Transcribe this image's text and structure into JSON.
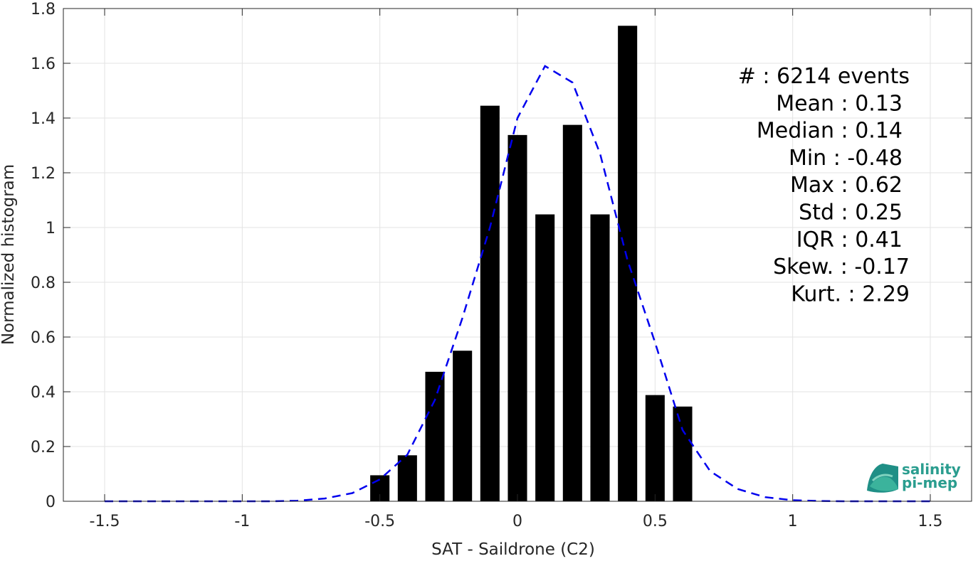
{
  "chart_data": {
    "type": "bar",
    "xlabel": "SAT - Saildrone (C2)",
    "ylabel": "Normalized histogram",
    "xlim": [
      -1.65,
      1.65
    ],
    "ylim": [
      0,
      1.8
    ],
    "xticks": [
      -1.5,
      -1,
      -0.5,
      0,
      0.5,
      1,
      1.5
    ],
    "xtick_labels": [
      "-1.5",
      "-1",
      "-0.5",
      "0",
      "0.5",
      "1",
      "1.5"
    ],
    "yticks": [
      0,
      0.2,
      0.4,
      0.6,
      0.8,
      1,
      1.2,
      1.4,
      1.6,
      1.8
    ],
    "ytick_labels": [
      "0",
      "0.2",
      "0.4",
      "0.6",
      "0.8",
      "1",
      "1.2",
      "1.4",
      "1.6",
      "1.8"
    ],
    "grid": true,
    "bar_width": 0.07,
    "bar_color": "#000000",
    "bars": {
      "x": [
        -0.5,
        -0.4,
        -0.3,
        -0.2,
        -0.1,
        0.0,
        0.1,
        0.2,
        0.3,
        0.4,
        0.5,
        0.6
      ],
      "values": [
        0.095,
        0.168,
        0.473,
        0.55,
        1.445,
        1.338,
        1.048,
        1.375,
        1.048,
        1.737,
        0.388,
        0.346
      ]
    },
    "fit_curve": {
      "style": "dashed",
      "color": "#0000ee",
      "x": [
        -1.5,
        -1.4,
        -1.3,
        -1.2,
        -1.1,
        -1.0,
        -0.9,
        -0.8,
        -0.7,
        -0.6,
        -0.5,
        -0.4,
        -0.3,
        -0.2,
        -0.1,
        0.0,
        0.1,
        0.2,
        0.3,
        0.4,
        0.5,
        0.6,
        0.7,
        0.8,
        0.9,
        1.0,
        1.1,
        1.2,
        1.3,
        1.4,
        1.5
      ],
      "y": [
        0.0,
        0.0,
        0.0,
        0.0,
        0.0,
        0.0,
        0.0,
        0.002,
        0.01,
        0.03,
        0.08,
        0.17,
        0.37,
        0.67,
        1.0,
        1.4,
        1.59,
        1.53,
        1.27,
        0.88,
        0.58,
        0.26,
        0.11,
        0.045,
        0.015,
        0.004,
        0.001,
        0.0,
        0.0,
        0.0,
        0.0
      ]
    },
    "stats": [
      {
        "label": "#  ",
        "value": ": 6214 events"
      },
      {
        "label": "Mean",
        "value": ": 0.13"
      },
      {
        "label": "Median",
        "value": ": 0.14"
      },
      {
        "label": "Min",
        "value": ": -0.48"
      },
      {
        "label": "Max",
        "value": ": 0.62"
      },
      {
        "label": "Std",
        "value": ": 0.25"
      },
      {
        "label": "IQR",
        "value": ": 0.41"
      },
      {
        "label": "Skew.",
        "value": ": -0.17"
      },
      {
        "label": "Kurt.",
        "value": ": 2.29"
      }
    ]
  },
  "logo": {
    "line1": "salinity",
    "line2": "pi-mep",
    "colors": [
      "#1f8f86",
      "#3bb39c",
      "#7fd3bf"
    ]
  }
}
